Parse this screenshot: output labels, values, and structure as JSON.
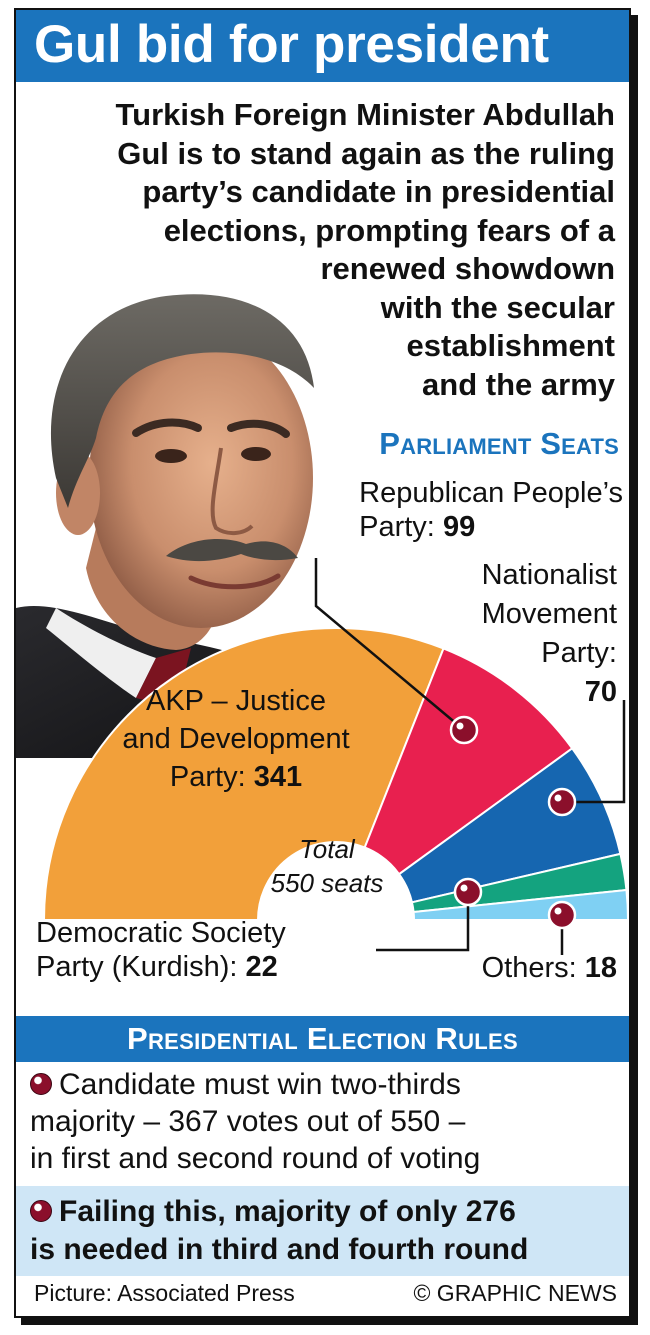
{
  "title": "Gul bid for president",
  "intro_lines": [
    "Turkish Foreign Minister Abdullah",
    "Gul is to stand again as the ruling",
    "party’s candidate in presidential",
    "elections, prompting fears of a",
    "renewed showdown",
    "with the secular",
    "establishment",
    "and the army"
  ],
  "seats_heading": "Parliament Seats",
  "labels": {
    "chp_line1": "Republican People’s",
    "chp_line2": "Party: ",
    "mhp_line1": "Nationalist",
    "mhp_line2": "Movement",
    "mhp_line3": "Party:",
    "akp_line1": "AKP – Justice",
    "akp_line2": "and Development",
    "akp_line3": "Party: ",
    "total_line1": "Total",
    "total_line2": "550 seats",
    "dtp_line1": "Democratic Society",
    "dtp_line2": "Party (Kurdish): ",
    "others": "Others: "
  },
  "chart_data": {
    "type": "pie",
    "subtype": "semicircle",
    "title": "Parliament Seats",
    "total": 550,
    "total_label": "Total 550 seats",
    "slices": [
      {
        "name": "AKP – Justice and Development Party",
        "value": 341,
        "color": "#f2a03a"
      },
      {
        "name": "Republican People’s Party",
        "value": 99,
        "color": "#e8204f"
      },
      {
        "name": "Nationalist Movement Party",
        "value": 70,
        "color": "#1666b0"
      },
      {
        "name": "Democratic Society Party (Kurdish)",
        "value": 22,
        "color": "#14a37f"
      },
      {
        "name": "Others",
        "value": 18,
        "color": "#7fd0f3"
      }
    ]
  },
  "rules_heading": "Presidential Election Rules",
  "rule1_lines": [
    "Candidate must win two-thirds",
    "majority – 367 votes out of 550 –",
    "in first and second round of voting"
  ],
  "rule2_lines": [
    "Failing this, majority of only 276",
    "is needed in third and fourth round"
  ],
  "credit": "Picture: Associated Press",
  "copyright": "© GRAPHIC NEWS",
  "colors": {
    "accent_blue": "#1b74bd",
    "highlight_bg": "#cfe6f6",
    "bullet": "#8b0f2b"
  },
  "icons": [
    "bullet-dot-icon"
  ]
}
